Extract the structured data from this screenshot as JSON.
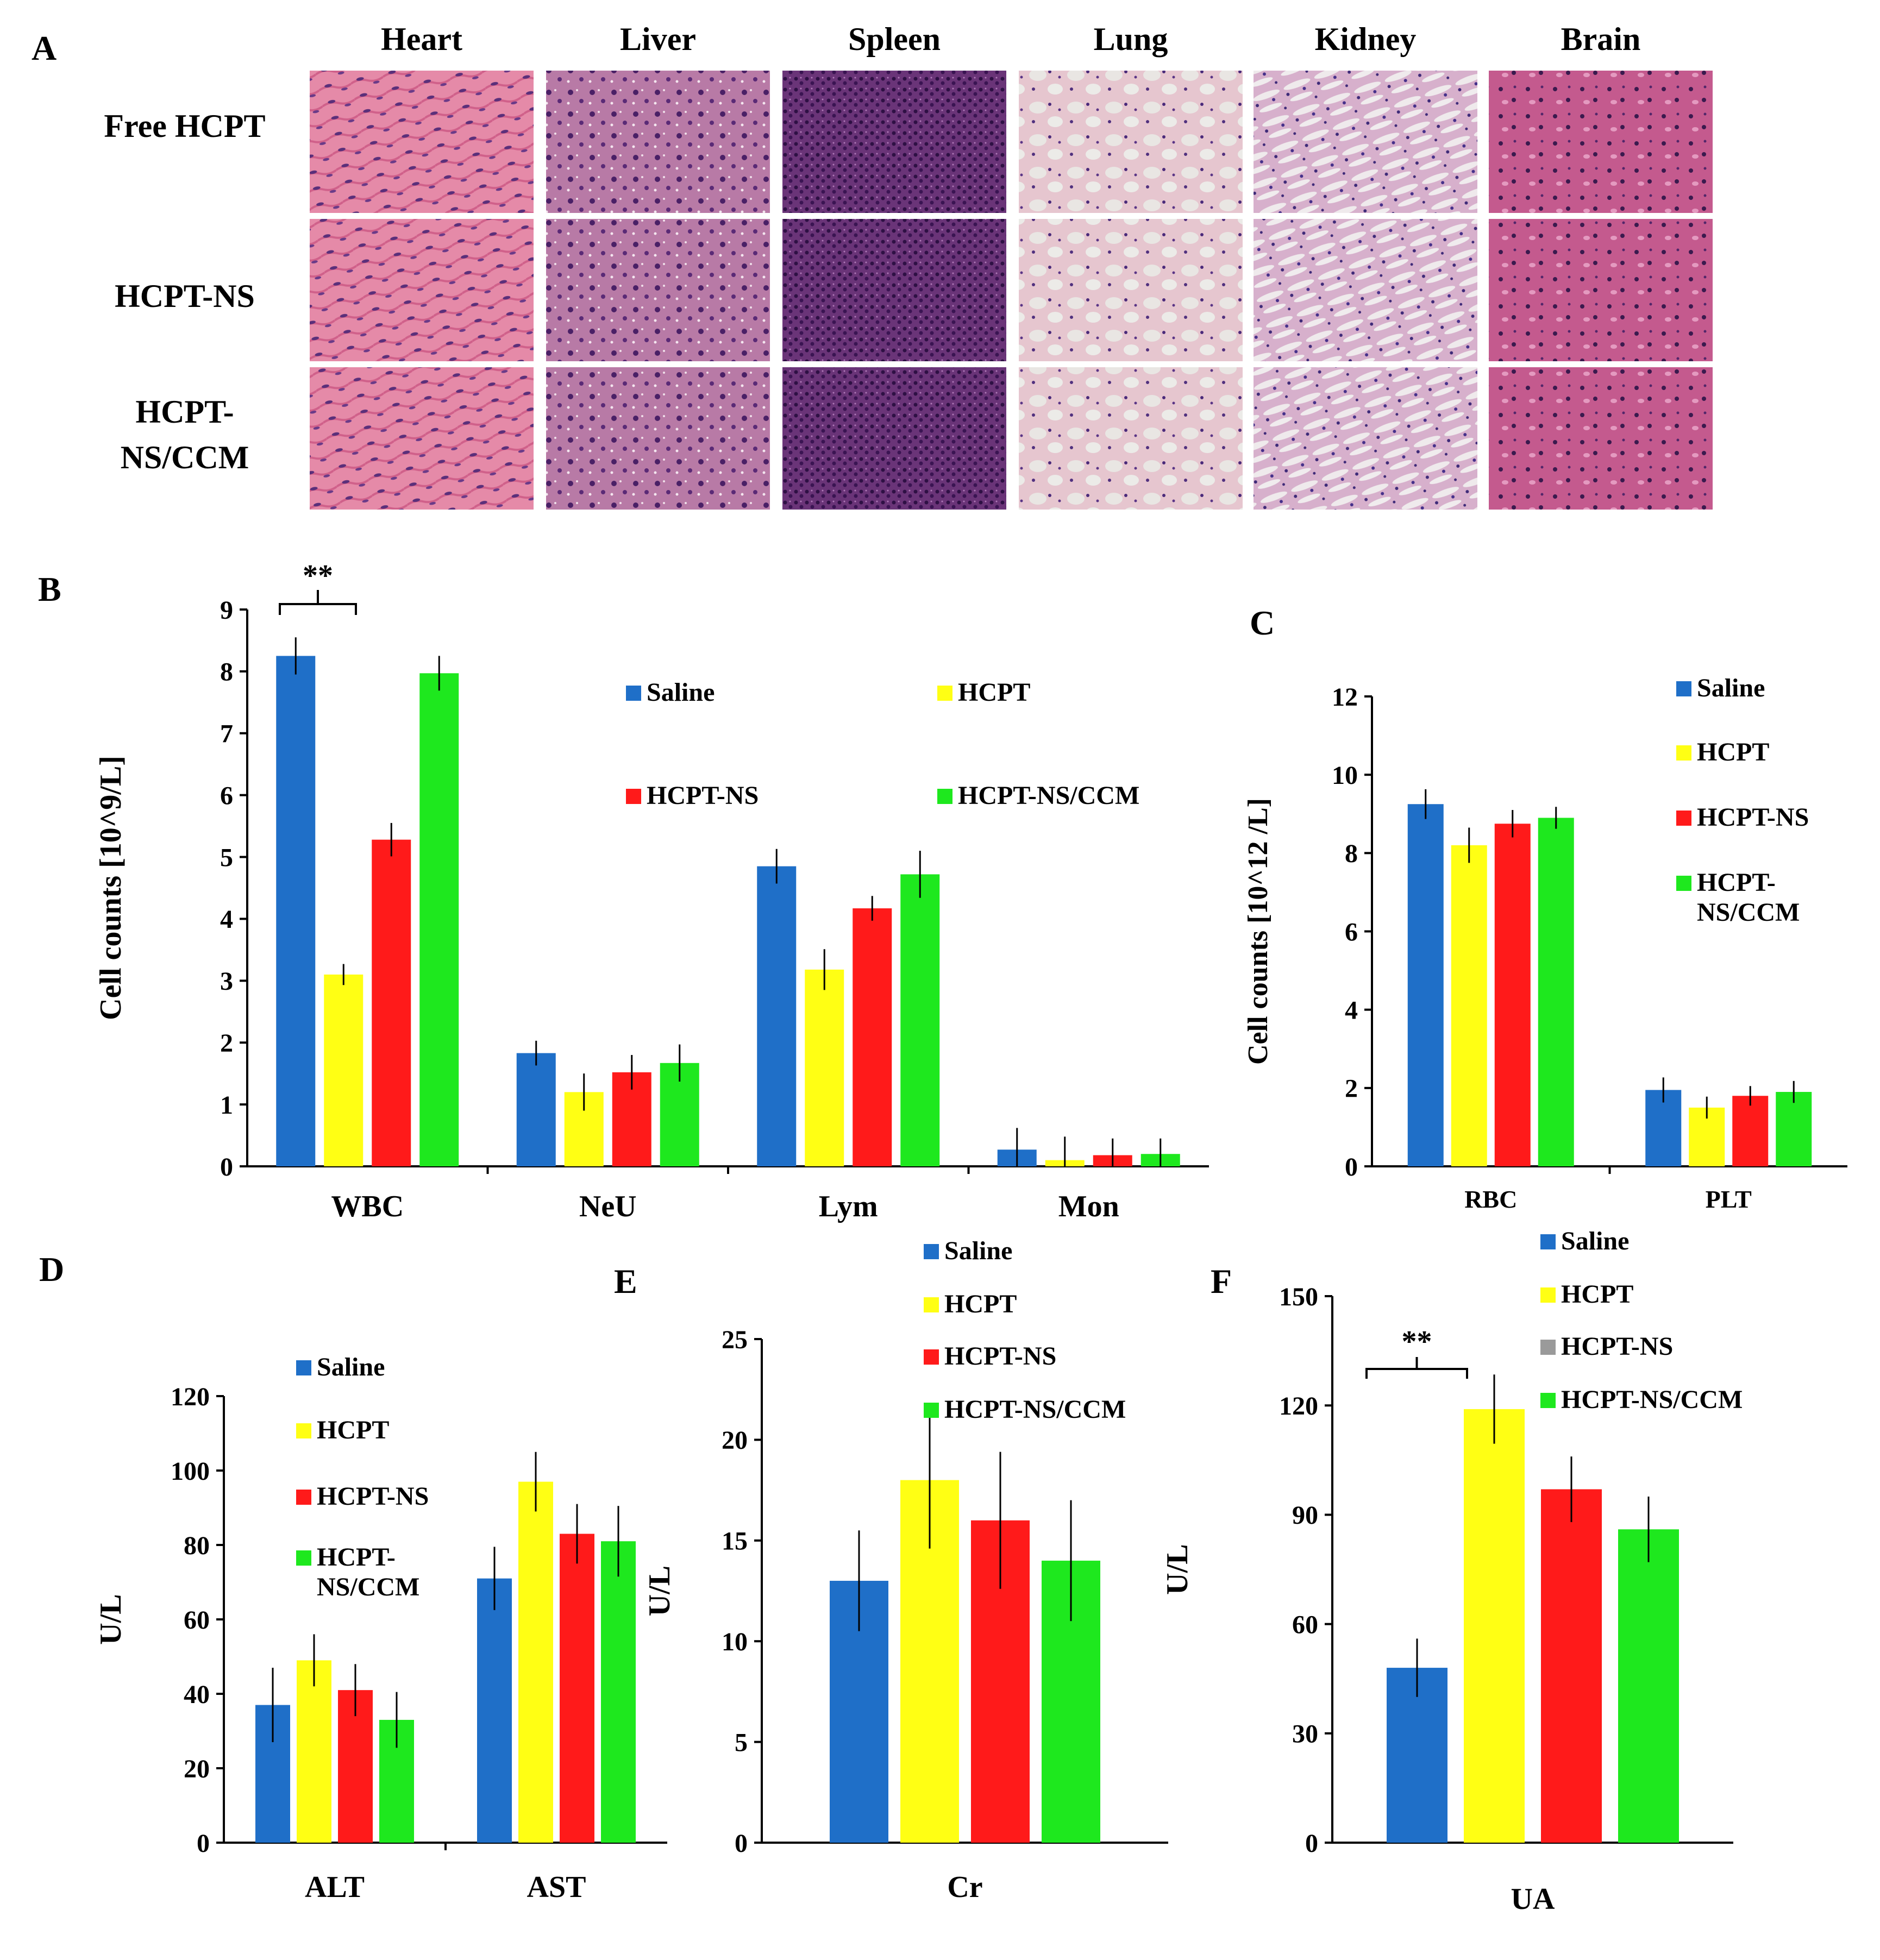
{
  "panels": {
    "A": "A",
    "B": "B",
    "C": "C",
    "D": "D",
    "E": "E",
    "F": "F"
  },
  "histology": {
    "columns": [
      "Heart",
      "Liver",
      "Spleen",
      "Lung",
      "Kidney",
      "Brain"
    ],
    "rows": [
      "Free HCPT",
      "HCPT-NS",
      "HCPT-\nNS/CCM"
    ],
    "row_labels": [
      {
        "lines": [
          "Free HCPT"
        ]
      },
      {
        "lines": [
          "HCPT-NS"
        ]
      },
      {
        "lines": [
          "HCPT-",
          "NS/CCM"
        ]
      }
    ]
  },
  "colors": {
    "saline": "#1f6fc8",
    "hcpt": "#ffff14",
    "hcpt_ns": "#ff1a1a",
    "hcpt_ns_ccm": "#1ee81e",
    "gray_swatch": "#9a9a9a",
    "heart": "#e07aa0",
    "liver": "#b06a9a",
    "spleen": "#5a2a6a",
    "lung": "#e8b8c8",
    "kidney": "#d8a8c8",
    "brain": "#c05888"
  },
  "chart_data": [
    {
      "id": "B",
      "type": "bar",
      "title": "",
      "ylabel": "Cell counts [10^9/L]",
      "xlabel": "",
      "categories": [
        "WBC",
        "NeU",
        "Lym",
        "Mon"
      ],
      "ylim": [
        0,
        9
      ],
      "yticks": [
        0,
        1,
        2,
        3,
        4,
        5,
        6,
        7,
        8,
        9
      ],
      "legend": [
        "Saline",
        "HCPT",
        "HCPT-NS",
        "HCPT-NS/CCM"
      ],
      "series": [
        {
          "name": "Saline",
          "values": [
            8.25,
            1.83,
            4.85,
            0.27
          ],
          "errors": [
            0.3,
            0.2,
            0.28,
            0.35
          ]
        },
        {
          "name": "HCPT",
          "values": [
            3.1,
            1.2,
            3.18,
            0.1
          ],
          "errors": [
            0.17,
            0.3,
            0.33,
            0.38
          ]
        },
        {
          "name": "HCPT-NS",
          "values": [
            5.28,
            1.52,
            4.17,
            0.18
          ],
          "errors": [
            0.27,
            0.28,
            0.2,
            0.27
          ]
        },
        {
          "name": "HCPT-NS/CCM",
          "values": [
            7.97,
            1.67,
            4.72,
            0.2
          ],
          "errors": [
            0.28,
            0.3,
            0.38,
            0.25
          ]
        }
      ],
      "annotation": "**"
    },
    {
      "id": "C",
      "type": "bar",
      "title": "",
      "ylabel": "Cell counts [10^12 /L]",
      "xlabel": "",
      "categories": [
        "RBC",
        "PLT"
      ],
      "ylim": [
        0,
        12
      ],
      "yticks": [
        0,
        2,
        4,
        6,
        8,
        10,
        12
      ],
      "legend": [
        "Saline",
        "HCPT",
        "HCPT-NS",
        "HCPT-\nNS/CCM"
      ],
      "legend_lines": [
        [
          "Saline"
        ],
        [
          "HCPT"
        ],
        [
          "HCPT-NS"
        ],
        [
          "HCPT-",
          "NS/CCM"
        ]
      ],
      "series": [
        {
          "name": "Saline",
          "values": [
            9.25,
            1.95
          ],
          "errors": [
            0.38,
            0.32
          ]
        },
        {
          "name": "HCPT",
          "values": [
            8.2,
            1.5
          ],
          "errors": [
            0.45,
            0.28
          ]
        },
        {
          "name": "HCPT-NS",
          "values": [
            8.75,
            1.8
          ],
          "errors": [
            0.35,
            0.25
          ]
        },
        {
          "name": "HCPT-NS/CCM",
          "values": [
            8.9,
            1.9
          ],
          "errors": [
            0.28,
            0.28
          ]
        }
      ]
    },
    {
      "id": "D",
      "type": "bar",
      "title": "",
      "ylabel": "U/L",
      "xlabel": "",
      "categories": [
        "ALT",
        "AST"
      ],
      "ylim": [
        0,
        120
      ],
      "yticks": [
        0,
        20,
        40,
        60,
        80,
        100,
        120
      ],
      "legend": [
        "Saline",
        "HCPT",
        "HCPT-NS",
        "HCPT-\nNS/CCM"
      ],
      "legend_lines": [
        [
          "Saline"
        ],
        [
          "HCPT"
        ],
        [
          "HCPT-NS"
        ],
        [
          "HCPT-",
          "NS/CCM"
        ]
      ],
      "series": [
        {
          "name": "Saline",
          "values": [
            37,
            71
          ],
          "errors": [
            10,
            8.5
          ]
        },
        {
          "name": "HCPT",
          "values": [
            49,
            97
          ],
          "errors": [
            7,
            8
          ]
        },
        {
          "name": "HCPT-NS",
          "values": [
            41,
            83
          ],
          "errors": [
            7,
            8
          ]
        },
        {
          "name": "HCPT-NS/CCM",
          "values": [
            33,
            81
          ],
          "errors": [
            7.5,
            9.5
          ]
        }
      ]
    },
    {
      "id": "E",
      "type": "bar",
      "title": "",
      "ylabel": "U/L",
      "xlabel": "",
      "categories": [
        "Cr"
      ],
      "ylim": [
        0,
        25
      ],
      "yticks": [
        0,
        5,
        10,
        15,
        20,
        25
      ],
      "legend": [
        "Saline",
        "HCPT",
        "HCPT-NS",
        "HCPT-NS/CCM"
      ],
      "series": [
        {
          "name": "Saline",
          "values": [
            13
          ],
          "errors": [
            2.5
          ]
        },
        {
          "name": "HCPT",
          "values": [
            18
          ],
          "errors": [
            3.4
          ]
        },
        {
          "name": "HCPT-NS",
          "values": [
            16
          ],
          "errors": [
            3.4
          ]
        },
        {
          "name": "HCPT-NS/CCM",
          "values": [
            14
          ],
          "errors": [
            3
          ]
        }
      ]
    },
    {
      "id": "F",
      "type": "bar",
      "title": "",
      "ylabel": "U/L",
      "xlabel": "",
      "categories": [
        "UA"
      ],
      "ylim": [
        0,
        150
      ],
      "yticks": [
        0,
        30,
        60,
        90,
        120,
        150
      ],
      "legend": [
        "Saline",
        "HCPT",
        "HCPT-NS",
        "HCPT-NS/CCM"
      ],
      "series": [
        {
          "name": "Saline",
          "values": [
            48
          ],
          "errors": [
            8
          ]
        },
        {
          "name": "HCPT",
          "values": [
            119
          ],
          "errors": [
            9.5
          ]
        },
        {
          "name": "HCPT-NS",
          "values": [
            97
          ],
          "errors": [
            9
          ]
        },
        {
          "name": "HCPT-NS/CCM",
          "values": [
            86
          ],
          "errors": [
            9
          ]
        }
      ],
      "annotation": "**"
    }
  ]
}
